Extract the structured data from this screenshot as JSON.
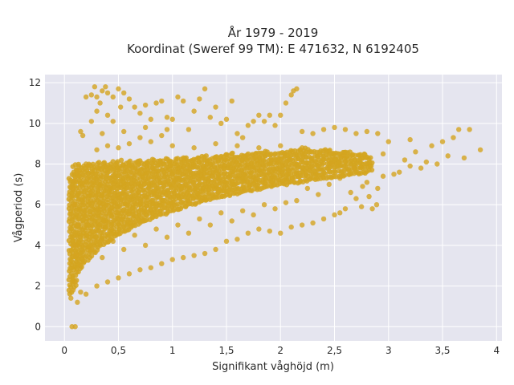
{
  "chart_data": {
    "type": "scatter",
    "title": "År 1979 - 2019",
    "subtitle": "Koordinat (Sweref 99 TM): E 471632, N 6192405",
    "xlabel": "Signifikant våghöjd (m)",
    "ylabel": "Vågperiod (s)",
    "xlim": [
      -0.18,
      4.05
    ],
    "ylim": [
      -0.7,
      12.4
    ],
    "x_ticks": [
      0,
      0.5,
      1,
      1.5,
      2,
      2.5,
      3,
      3.5,
      4
    ],
    "x_tick_labels": [
      "0",
      "0,5",
      "1",
      "1,5",
      "2",
      "2,5",
      "3",
      "3,5",
      "4"
    ],
    "y_ticks": [
      0,
      2,
      4,
      6,
      8,
      10,
      12
    ],
    "y_tick_labels": [
      "0",
      "2",
      "4",
      "6",
      "8",
      "10",
      "12"
    ],
    "grid": true,
    "marker_color": "#d4a41f",
    "background_color": "#e5e5ef",
    "grid_color": "#ffffff",
    "series": [
      {
        "values": [
          [
            0.06,
            1.4
          ],
          [
            0.07,
            0.0
          ],
          [
            0.1,
            0.0
          ],
          [
            0.08,
            1.8
          ],
          [
            0.1,
            2.2
          ],
          [
            0.12,
            1.2
          ],
          [
            0.15,
            1.7
          ],
          [
            0.08,
            6.8
          ],
          [
            0.1,
            7.2
          ],
          [
            0.12,
            7.6
          ],
          [
            0.2,
            8.0
          ],
          [
            0.15,
            9.6
          ],
          [
            0.17,
            9.4
          ],
          [
            0.2,
            11.3
          ],
          [
            0.25,
            11.4
          ],
          [
            0.28,
            11.8
          ],
          [
            0.3,
            11.3
          ],
          [
            0.33,
            11.0
          ],
          [
            0.35,
            11.6
          ],
          [
            0.38,
            11.8
          ],
          [
            0.4,
            11.5
          ],
          [
            0.45,
            11.3
          ],
          [
            0.5,
            11.7
          ],
          [
            0.52,
            10.8
          ],
          [
            0.55,
            11.5
          ],
          [
            0.6,
            11.2
          ],
          [
            0.65,
            10.8
          ],
          [
            0.25,
            10.1
          ],
          [
            0.3,
            10.6
          ],
          [
            0.4,
            10.4
          ],
          [
            0.45,
            10.1
          ],
          [
            0.7,
            10.5
          ],
          [
            0.75,
            10.9
          ],
          [
            0.8,
            10.2
          ],
          [
            0.85,
            11.0
          ],
          [
            0.9,
            11.1
          ],
          [
            0.95,
            10.3
          ],
          [
            1.0,
            10.2
          ],
          [
            1.05,
            11.3
          ],
          [
            1.1,
            11.1
          ],
          [
            1.15,
            9.7
          ],
          [
            1.2,
            10.6
          ],
          [
            1.25,
            11.2
          ],
          [
            1.3,
            11.7
          ],
          [
            1.35,
            10.3
          ],
          [
            1.4,
            10.8
          ],
          [
            1.45,
            10.0
          ],
          [
            1.5,
            10.2
          ],
          [
            1.55,
            11.1
          ],
          [
            1.6,
            9.5
          ],
          [
            1.65,
            9.3
          ],
          [
            1.7,
            9.9
          ],
          [
            1.75,
            10.1
          ],
          [
            1.8,
            10.4
          ],
          [
            1.85,
            10.1
          ],
          [
            1.9,
            10.4
          ],
          [
            1.95,
            9.9
          ],
          [
            2.0,
            10.4
          ],
          [
            2.05,
            11.0
          ],
          [
            2.1,
            11.4
          ],
          [
            2.12,
            11.6
          ],
          [
            2.15,
            11.7
          ],
          [
            2.2,
            9.6
          ],
          [
            2.3,
            9.5
          ],
          [
            2.4,
            9.7
          ],
          [
            2.5,
            9.8
          ],
          [
            2.6,
            9.7
          ],
          [
            2.7,
            9.5
          ],
          [
            2.8,
            9.6
          ],
          [
            2.9,
            9.5
          ],
          [
            3.0,
            9.1
          ],
          [
            3.2,
            9.2
          ],
          [
            3.4,
            8.9
          ],
          [
            3.5,
            9.1
          ],
          [
            3.6,
            9.3
          ],
          [
            3.65,
            9.7
          ],
          [
            3.75,
            9.7
          ],
          [
            3.85,
            8.7
          ],
          [
            3.7,
            8.3
          ],
          [
            3.55,
            8.4
          ],
          [
            3.45,
            8.0
          ],
          [
            3.3,
            7.8
          ],
          [
            3.2,
            7.9
          ],
          [
            3.1,
            7.6
          ],
          [
            3.05,
            7.5
          ],
          [
            2.95,
            7.4
          ],
          [
            2.9,
            6.8
          ],
          [
            2.85,
            5.8
          ],
          [
            2.75,
            5.9
          ],
          [
            2.6,
            5.8
          ],
          [
            2.55,
            5.6
          ],
          [
            2.5,
            5.5
          ],
          [
            2.4,
            5.3
          ],
          [
            2.3,
            5.1
          ],
          [
            2.2,
            5.0
          ],
          [
            2.1,
            4.9
          ],
          [
            2.0,
            4.6
          ],
          [
            1.9,
            4.7
          ],
          [
            1.8,
            4.8
          ],
          [
            1.7,
            4.6
          ],
          [
            1.6,
            4.3
          ],
          [
            1.5,
            4.2
          ],
          [
            1.4,
            3.8
          ],
          [
            1.3,
            3.6
          ],
          [
            1.2,
            3.5
          ],
          [
            1.1,
            3.4
          ],
          [
            1.0,
            3.3
          ],
          [
            0.9,
            3.1
          ],
          [
            0.8,
            2.9
          ],
          [
            0.7,
            2.8
          ],
          [
            0.6,
            2.6
          ],
          [
            0.5,
            2.4
          ],
          [
            0.4,
            2.2
          ],
          [
            0.3,
            2.0
          ],
          [
            0.2,
            1.6
          ],
          [
            3.35,
            8.1
          ],
          [
            3.25,
            8.6
          ],
          [
            3.15,
            8.2
          ],
          [
            2.95,
            8.5
          ],
          [
            2.8,
            7.1
          ],
          [
            2.7,
            6.3
          ],
          [
            2.65,
            6.6
          ],
          [
            2.55,
            7.3
          ],
          [
            2.45,
            7.0
          ],
          [
            2.35,
            6.5
          ],
          [
            2.25,
            6.8
          ],
          [
            2.15,
            6.2
          ],
          [
            2.05,
            6.1
          ],
          [
            1.95,
            5.8
          ],
          [
            1.85,
            6.0
          ],
          [
            1.75,
            5.5
          ],
          [
            1.65,
            5.7
          ],
          [
            1.55,
            5.2
          ],
          [
            1.45,
            5.6
          ],
          [
            1.35,
            5.0
          ],
          [
            1.25,
            5.3
          ],
          [
            1.15,
            4.6
          ],
          [
            1.05,
            5.0
          ],
          [
            0.95,
            4.4
          ],
          [
            0.85,
            4.8
          ],
          [
            0.75,
            4.0
          ],
          [
            0.65,
            4.5
          ],
          [
            0.55,
            3.8
          ],
          [
            0.45,
            4.2
          ],
          [
            0.35,
            3.4
          ],
          [
            0.25,
            3.8
          ],
          [
            0.15,
            3.0
          ],
          [
            0.12,
            5.0
          ],
          [
            0.1,
            4.0
          ],
          [
            0.09,
            6.0
          ],
          [
            0.11,
            3.5
          ],
          [
            1.2,
            8.8
          ],
          [
            1.4,
            9.0
          ],
          [
            1.6,
            8.9
          ],
          [
            1.8,
            8.8
          ],
          [
            2.0,
            8.9
          ],
          [
            2.2,
            8.8
          ],
          [
            0.6,
            9.0
          ],
          [
            0.7,
            9.3
          ],
          [
            0.8,
            9.1
          ],
          [
            0.9,
            9.4
          ],
          [
            1.0,
            8.9
          ],
          [
            0.5,
            8.8
          ],
          [
            0.4,
            8.9
          ],
          [
            0.3,
            8.7
          ],
          [
            0.35,
            9.5
          ],
          [
            0.55,
            9.6
          ],
          [
            0.75,
            9.8
          ],
          [
            0.95,
            9.7
          ],
          [
            2.89,
            6.0
          ],
          [
            2.82,
            6.4
          ],
          [
            2.76,
            6.9
          ],
          [
            2.68,
            7.8
          ],
          [
            2.58,
            8.4
          ],
          [
            2.48,
            8.0
          ]
        ]
      }
    ]
  }
}
